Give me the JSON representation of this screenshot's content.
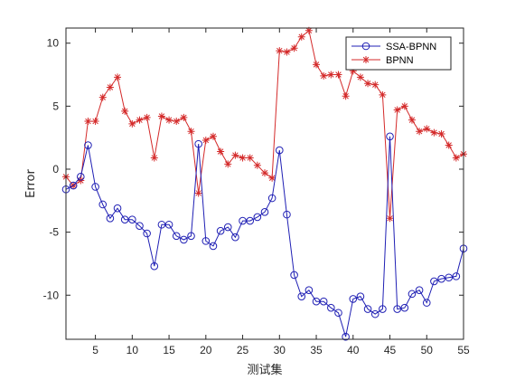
{
  "chart_data": {
    "type": "line",
    "title": "",
    "xlabel": "测试集",
    "ylabel": "Error",
    "xlim": [
      1,
      55
    ],
    "ylim": [
      -13.5,
      11.2
    ],
    "xticks": [
      5,
      10,
      15,
      20,
      25,
      30,
      35,
      40,
      45,
      50,
      55
    ],
    "yticks": [
      -10,
      -5,
      0,
      5,
      10
    ],
    "grid": false,
    "legend_position": "top-right",
    "x": [
      1,
      2,
      3,
      4,
      5,
      6,
      7,
      8,
      9,
      10,
      11,
      12,
      13,
      14,
      15,
      16,
      17,
      18,
      19,
      20,
      21,
      22,
      23,
      24,
      25,
      26,
      27,
      28,
      29,
      30,
      31,
      32,
      33,
      34,
      35,
      36,
      37,
      38,
      39,
      40,
      41,
      42,
      43,
      44,
      45,
      46,
      47,
      48,
      49,
      50,
      51,
      52,
      53,
      54,
      55
    ],
    "series": [
      {
        "name": "SSA-BPNN",
        "color": "#1f1fb4",
        "marker": "circle",
        "values": [
          -1.6,
          -1.3,
          -0.6,
          1.9,
          -1.4,
          -2.8,
          -3.9,
          -3.1,
          -4.0,
          -4.0,
          -4.5,
          -5.1,
          -7.7,
          -4.4,
          -4.4,
          -5.3,
          -5.6,
          -5.3,
          2.0,
          -5.7,
          -6.1,
          -4.9,
          -4.6,
          -5.4,
          -4.1,
          -4.1,
          -3.8,
          -3.4,
          -2.3,
          1.5,
          -3.6,
          -8.4,
          -10.1,
          -9.6,
          -10.5,
          -10.5,
          -11.0,
          -11.4,
          -13.3,
          -10.3,
          -10.1,
          -11.1,
          -11.5,
          -11.1,
          2.6,
          -11.1,
          -11.0,
          -9.9,
          -9.6,
          -10.6,
          -8.9,
          -8.7,
          -8.6,
          -8.5,
          -6.3
        ]
      },
      {
        "name": "BPNN",
        "color": "#d42a2a",
        "marker": "star",
        "values": [
          -0.6,
          -1.3,
          -0.9,
          3.8,
          3.8,
          5.7,
          6.5,
          7.3,
          4.6,
          3.6,
          3.9,
          4.1,
          0.9,
          4.2,
          3.9,
          3.8,
          4.1,
          3.0,
          -1.9,
          2.3,
          2.6,
          1.4,
          0.4,
          1.1,
          0.9,
          0.9,
          0.3,
          -0.3,
          -0.7,
          9.4,
          9.3,
          9.6,
          10.5,
          11.0,
          8.3,
          7.4,
          7.5,
          7.5,
          5.8,
          7.8,
          7.3,
          6.8,
          6.7,
          5.9,
          -3.9,
          4.7,
          5.0,
          3.9,
          3.0,
          3.2,
          2.9,
          2.8,
          1.9,
          0.9,
          1.2
        ]
      }
    ]
  }
}
